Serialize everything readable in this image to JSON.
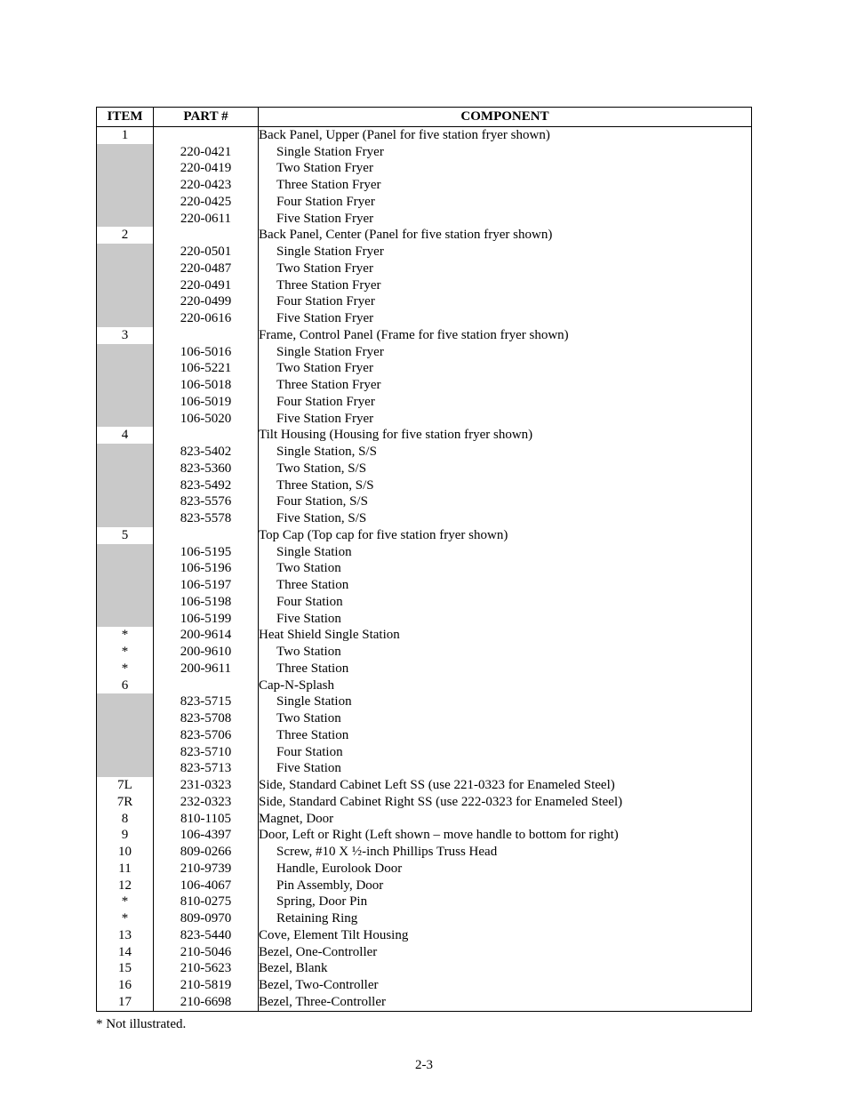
{
  "headers": {
    "item": "ITEM",
    "part": "PART #",
    "component": "COMPONENT"
  },
  "footnote": "* Not illustrated.",
  "page_number": "2-3",
  "colors": {
    "shade": "#c9c9c9",
    "border": "#000000",
    "background": "#ffffff",
    "text": "#000000"
  },
  "rows": [
    {
      "item": "1",
      "part": "",
      "component": "Back Panel, Upper (Panel for five station fryer shown)",
      "bottom": false
    },
    {
      "item": "",
      "part": "220-0421",
      "component": "Single Station Fryer",
      "indent": 1,
      "shade": true,
      "bottom": false
    },
    {
      "item": "",
      "part": "220-0419",
      "component": "Two Station Fryer",
      "indent": 1,
      "shade": true,
      "bottom": false
    },
    {
      "item": "",
      "part": "220-0423",
      "component": "Three Station Fryer",
      "indent": 1,
      "shade": true,
      "bottom": false
    },
    {
      "item": "",
      "part": "220-0425",
      "component": "Four Station Fryer",
      "indent": 1,
      "shade": true,
      "bottom": false
    },
    {
      "item": "",
      "part": "220-0611",
      "component": "Five Station Fryer",
      "indent": 1,
      "shade": true,
      "bottom": false
    },
    {
      "item": "2",
      "part": "",
      "component": "Back Panel, Center (Panel for five station fryer shown)",
      "bottom": false
    },
    {
      "item": "",
      "part": "220-0501",
      "component": "Single Station Fryer",
      "indent": 1,
      "shade": true,
      "bottom": false
    },
    {
      "item": "",
      "part": "220-0487",
      "component": "Two Station Fryer",
      "indent": 1,
      "shade": true,
      "bottom": false
    },
    {
      "item": "",
      "part": "220-0491",
      "component": "Three Station Fryer",
      "indent": 1,
      "shade": true,
      "bottom": false
    },
    {
      "item": "",
      "part": "220-0499",
      "component": "Four Station Fryer",
      "indent": 1,
      "shade": true,
      "bottom": false
    },
    {
      "item": "",
      "part": "220-0616",
      "component": "Five Station Fryer",
      "indent": 1,
      "shade": true,
      "bottom": false
    },
    {
      "item": "3",
      "part": "",
      "component": "Frame, Control Panel (Frame for five station fryer shown)",
      "bottom": false
    },
    {
      "item": "",
      "part": "106-5016",
      "component": "Single Station Fryer",
      "indent": 1,
      "shade": true,
      "bottom": false
    },
    {
      "item": "",
      "part": "106-5221",
      "component": "Two Station Fryer",
      "indent": 1,
      "shade": true,
      "bottom": false
    },
    {
      "item": "",
      "part": "106-5018",
      "component": "Three Station Fryer",
      "indent": 1,
      "shade": true,
      "bottom": false
    },
    {
      "item": "",
      "part": "106-5019",
      "component": "Four Station Fryer",
      "indent": 1,
      "shade": true,
      "bottom": false
    },
    {
      "item": "",
      "part": "106-5020",
      "component": "Five Station Fryer",
      "indent": 1,
      "shade": true,
      "bottom": false
    },
    {
      "item": "4",
      "part": "",
      "component": "Tilt Housing (Housing for five station fryer shown)",
      "bottom": false
    },
    {
      "item": "",
      "part": "823-5402",
      "component": "Single Station, S/S",
      "indent": 1,
      "shade": true,
      "bottom": false
    },
    {
      "item": "",
      "part": "823-5360",
      "component": "Two Station, S/S",
      "indent": 1,
      "shade": true,
      "bottom": false
    },
    {
      "item": "",
      "part": "823-5492",
      "component": "Three Station, S/S",
      "indent": 1,
      "shade": true,
      "bottom": false
    },
    {
      "item": "",
      "part": "823-5576",
      "component": "Four Station, S/S",
      "indent": 1,
      "shade": true,
      "bottom": false
    },
    {
      "item": "",
      "part": "823-5578",
      "component": "Five Station, S/S",
      "indent": 1,
      "shade": true,
      "bottom": false
    },
    {
      "item": "5",
      "part": "",
      "component": "Top Cap (Top cap for five station fryer shown)",
      "bottom": false
    },
    {
      "item": "",
      "part": "106-5195",
      "component": "Single Station",
      "indent": 1,
      "shade": true,
      "bottom": false
    },
    {
      "item": "",
      "part": "106-5196",
      "component": "Two Station",
      "indent": 1,
      "shade": true,
      "bottom": false
    },
    {
      "item": "",
      "part": "106-5197",
      "component": "Three Station",
      "indent": 1,
      "shade": true,
      "bottom": false
    },
    {
      "item": "",
      "part": "106-5198",
      "component": "Four Station",
      "indent": 1,
      "shade": true,
      "bottom": false
    },
    {
      "item": "",
      "part": "106-5199",
      "component": "Five Station",
      "indent": 1,
      "shade": true,
      "bottom": false
    },
    {
      "item": "*",
      "part": "200-9614",
      "component": "Heat Shield  Single Station",
      "bottom": false
    },
    {
      "item": "*",
      "part": "200-9610",
      "component": "Two Station",
      "indent": 1,
      "bottom": false
    },
    {
      "item": "*",
      "part": "200-9611",
      "component": "Three Station",
      "indent": 1,
      "bottom": false
    },
    {
      "item": "6",
      "part": "",
      "component": "Cap-N-Splash",
      "bottom": false
    },
    {
      "item": "",
      "part": "823-5715",
      "component": "Single Station",
      "indent": 1,
      "shade": true,
      "bottom": false
    },
    {
      "item": "",
      "part": "823-5708",
      "component": "Two Station",
      "indent": 1,
      "shade": true,
      "bottom": false
    },
    {
      "item": "",
      "part": "823-5706",
      "component": "Three Station",
      "indent": 1,
      "shade": true,
      "bottom": false
    },
    {
      "item": "",
      "part": "823-5710",
      "component": "Four Station",
      "indent": 1,
      "shade": true,
      "bottom": false
    },
    {
      "item": "",
      "part": "823-5713",
      "component": "Five Station",
      "indent": 1,
      "shade": true,
      "bottom": false
    },
    {
      "item": "7L",
      "part": "231-0323",
      "component": "Side, Standard Cabinet Left SS (use 221-0323 for Enameled Steel)",
      "bottom": false
    },
    {
      "item": "7R",
      "part": "232-0323",
      "component": "Side, Standard Cabinet Right SS (use 222-0323 for Enameled Steel)",
      "bottom": false
    },
    {
      "item": "8",
      "part": "810-1105",
      "component": "Magnet, Door",
      "bottom": false
    },
    {
      "item": "9",
      "part": "106-4397",
      "component": "Door, Left or Right (Left shown – move handle to bottom for right)",
      "bottom": false
    },
    {
      "item": "10",
      "part": "809-0266",
      "component": "Screw, #10 X ½-inch Phillips Truss Head",
      "indent": 1,
      "bottom": false
    },
    {
      "item": "11",
      "part": "210-9739",
      "component": "Handle, Eurolook Door",
      "indent": 1,
      "bottom": false
    },
    {
      "item": "12",
      "part": "106-4067",
      "component": "Pin Assembly, Door",
      "indent": 1,
      "bottom": false
    },
    {
      "item": "*",
      "part": "810-0275",
      "component": "Spring, Door Pin",
      "indent": 1,
      "bottom": false
    },
    {
      "item": "*",
      "part": "809-0970",
      "component": "Retaining Ring",
      "indent": 1,
      "bottom": false
    },
    {
      "item": "13",
      "part": "823-5440",
      "component": "Cove, Element Tilt Housing",
      "bottom": false
    },
    {
      "item": "14",
      "part": "210-5046",
      "component": "Bezel, One-Controller",
      "bottom": false
    },
    {
      "item": "15",
      "part": "210-5623",
      "component": "Bezel, Blank",
      "bottom": false
    },
    {
      "item": "16",
      "part": "210-5819",
      "component": "Bezel, Two-Controller",
      "bottom": false
    },
    {
      "item": "17",
      "part": "210-6698",
      "component": "Bezel, Three-Controller",
      "bottom": true
    }
  ]
}
